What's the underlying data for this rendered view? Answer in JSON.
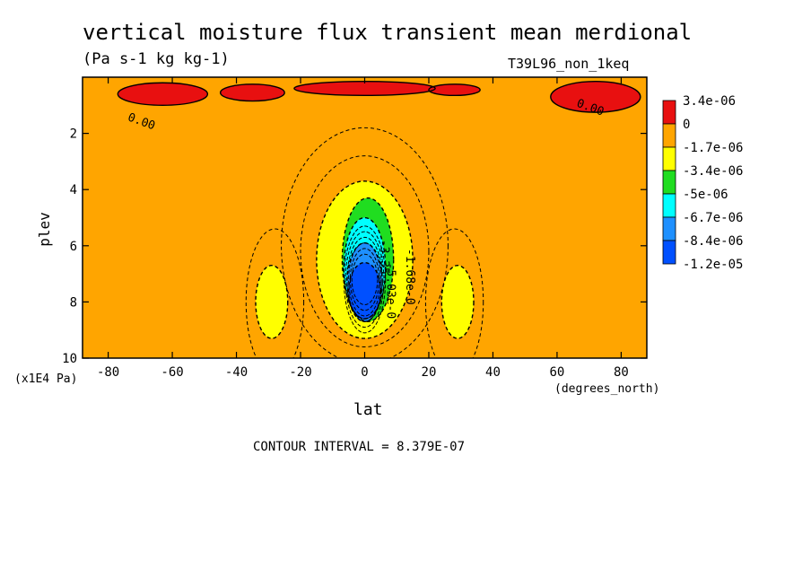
{
  "chart_data": {
    "type": "heatmap",
    "title": "vertical moisture flux transient mean merdional",
    "units": "(Pa s-1 kg kg-1)",
    "experiment": "T39L96_non_1keq",
    "xlabel": "lat",
    "xunit": "(degrees_north)",
    "ylabel": "plev",
    "yunit": "(x1E4 Pa)",
    "xlim": [
      -88,
      88
    ],
    "ylim": [
      10,
      0
    ],
    "x_ticks": [
      -80,
      -60,
      -40,
      -20,
      0,
      20,
      40,
      60,
      80
    ],
    "x_tick_labels": [
      "-80",
      "-60",
      "-40",
      "-20",
      "0",
      "20",
      "40",
      "60",
      "80"
    ],
    "y_ticks": [
      2,
      4,
      6,
      8,
      10
    ],
    "y_tick_labels": [
      "2",
      "4",
      "6",
      "8",
      "10"
    ],
    "contour_interval": "CONTOUR INTERVAL = 8.379E-07",
    "colorbar": {
      "labels": [
        "3.4e-06",
        "0",
        "-1.7e-06",
        "-3.4e-06",
        "-5e-06",
        "-6.7e-06",
        "-8.4e-06",
        "-1.2e-05"
      ],
      "colors": [
        "#e81010",
        "#ffa500",
        "#ffff00",
        "#20dd20",
        "#00ffff",
        "#1e90ff",
        "#0050ff"
      ]
    },
    "contour_labels": [
      {
        "text": "0.00",
        "lat": -70,
        "plev": 1.7
      },
      {
        "text": "0.00",
        "lat": 70,
        "plev": 1.2
      },
      {
        "text": "-1.68e-0",
        "lat": 13,
        "plev": 7.1
      },
      {
        "text": "-3.35",
        "lat": 5,
        "plev": 6.4
      },
      {
        "text": "-5.03e-0",
        "lat": 7,
        "plev": 7.6
      }
    ],
    "field_regions": [
      {
        "level": 0,
        "name": "positive",
        "areas": [
          {
            "lat": -63,
            "plev": 0.6,
            "dlat": 14,
            "dplev": 0.4
          },
          {
            "lat": -35,
            "plev": 0.55,
            "dlat": 10,
            "dplev": 0.3
          },
          {
            "lat": 0,
            "plev": 0.4,
            "dlat": 22,
            "dplev": 0.25
          },
          {
            "lat": 28,
            "plev": 0.45,
            "dlat": 8,
            "dplev": 0.2
          },
          {
            "lat": 72,
            "plev": 0.7,
            "dlat": 14,
            "dplev": 0.55
          }
        ]
      },
      {
        "level": 2,
        "name": "yellow",
        "areas": [
          {
            "lat": -29,
            "plev": 8.0,
            "dlat": 5,
            "dplev": 1.3
          },
          {
            "lat": 29,
            "plev": 8.0,
            "dlat": 5,
            "dplev": 1.3
          },
          {
            "lat": 0,
            "plev": 6.5,
            "dlat": 15,
            "dplev": 2.8
          }
        ]
      },
      {
        "level": 3,
        "name": "green",
        "areas": [
          {
            "lat": 1,
            "plev": 6.5,
            "dlat": 8,
            "dplev": 2.2
          }
        ]
      },
      {
        "level": 4,
        "name": "cyan",
        "areas": [
          {
            "lat": 0,
            "plev": 6.8,
            "dlat": 6.5,
            "dplev": 1.8
          }
        ]
      },
      {
        "level": 5,
        "name": "mid-blue",
        "areas": [
          {
            "lat": 0,
            "plev": 7.3,
            "dlat": 5.5,
            "dplev": 1.4
          }
        ]
      },
      {
        "level": 6,
        "name": "deep-blue",
        "areas": [
          {
            "lat": 0,
            "plev": 7.6,
            "dlat": 5,
            "dplev": 1.0
          }
        ]
      }
    ]
  }
}
